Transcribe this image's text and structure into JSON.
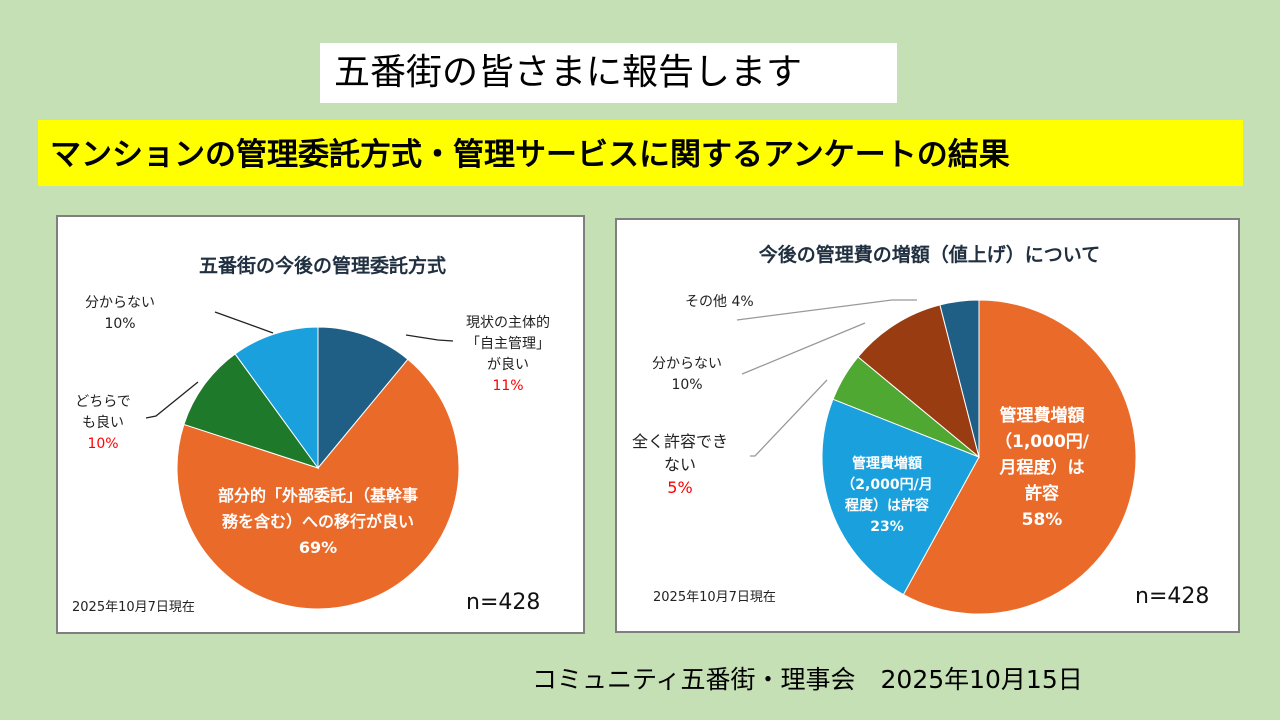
{
  "header": {
    "title": "五番街の皆さまに報告します",
    "subtitle": "マンションの管理委託方式・管理サービスに関するアンケートの結果"
  },
  "chart_data": [
    {
      "type": "pie",
      "title": "五番街の今後の管理委託方式",
      "slices": [
        {
          "label": "現状の主体的「自主管理」が良い",
          "label_lines": [
            "現状の主体的",
            "「自主管理」",
            "が良い"
          ],
          "pct_text": "11%",
          "value": 11,
          "color": "#1f5f85"
        },
        {
          "label": "部分的「外部委託」（基幹事務を含む）への移行が良い",
          "label_lines": [
            "部分的「外部委託」（基幹事",
            "務を含む）への移行が良い"
          ],
          "pct_text": "69%",
          "value": 69,
          "color": "#ea6a2a"
        },
        {
          "label": "どちらでも良い",
          "label_lines": [
            "どちらで",
            "も良い"
          ],
          "pct_text": "10%",
          "value": 10,
          "color": "#1e7a2a"
        },
        {
          "label": "分からない",
          "label_lines": [
            "分からない"
          ],
          "pct_text": "10%",
          "value": 10,
          "color": "#1aa0dc"
        }
      ],
      "date_note": "2025年10月7日現在",
      "n_label": "n=428"
    },
    {
      "type": "pie",
      "title": "今後の管理費の増額（値上げ）について",
      "slices": [
        {
          "label": "管理費増額（1,000円/月程度）は許容",
          "label_lines": [
            "管理費増額",
            "（1,000円/",
            "月程度）は",
            "許容"
          ],
          "pct_text": "58%",
          "value": 58,
          "color": "#ea6a2a"
        },
        {
          "label": "管理費増額（2,000円/月程度）は許容",
          "label_lines": [
            "管理費増額",
            "（2,000円/月",
            "程度）は許容"
          ],
          "pct_text": "23%",
          "value": 23,
          "color": "#1aa0dc"
        },
        {
          "label": "全く許容できない",
          "label_lines": [
            "全く許容でき",
            "ない"
          ],
          "pct_text": "5%",
          "value": 5,
          "color": "#4fa832"
        },
        {
          "label": "分からない",
          "label_lines": [
            "分からない"
          ],
          "pct_text": "10%",
          "value": 10,
          "color": "#9a3c12"
        },
        {
          "label": "その他",
          "label_lines": [
            "その他 4%"
          ],
          "pct_text": "4%",
          "value": 4,
          "color": "#1f5f85"
        }
      ],
      "date_note": "2025年10月7日現在",
      "n_label": "n=428"
    }
  ],
  "footer": {
    "text": "コミュニティ五番街・理事会　2025年10月15日"
  }
}
